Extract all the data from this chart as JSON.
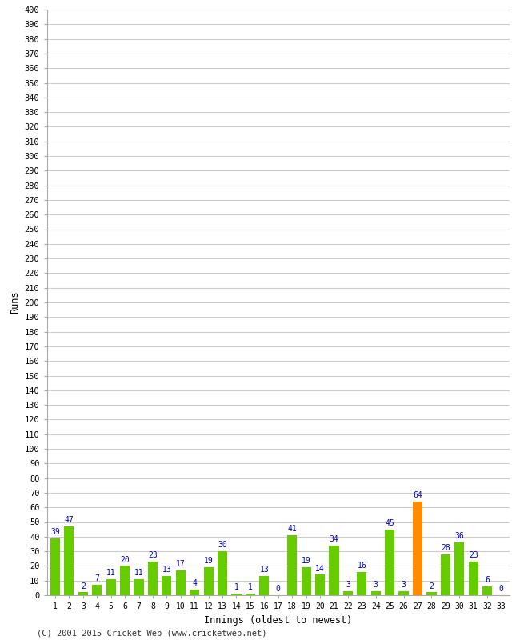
{
  "xlabel": "Innings (oldest to newest)",
  "ylabel": "Runs",
  "categories": [
    1,
    2,
    3,
    4,
    5,
    6,
    7,
    8,
    9,
    10,
    11,
    12,
    13,
    14,
    15,
    16,
    17,
    18,
    19,
    20,
    21,
    22,
    23,
    24,
    25,
    26,
    27,
    28,
    29,
    30,
    31,
    32,
    33
  ],
  "values": [
    39,
    47,
    2,
    7,
    11,
    20,
    11,
    23,
    13,
    17,
    4,
    19,
    30,
    1,
    1,
    13,
    0,
    41,
    19,
    14,
    34,
    3,
    16,
    3,
    45,
    3,
    64,
    2,
    28,
    36,
    23,
    6,
    0
  ],
  "highlight_index": 26,
  "bar_color_normal": "#66cc00",
  "bar_color_highlight": "#ff8c00",
  "label_color": "#0000cc",
  "background_color": "#ffffff",
  "grid_color": "#cccccc",
  "ylim": [
    0,
    400
  ],
  "yticks": [
    0,
    10,
    20,
    30,
    40,
    50,
    60,
    70,
    80,
    90,
    100,
    110,
    120,
    130,
    140,
    150,
    160,
    170,
    180,
    190,
    200,
    210,
    220,
    230,
    240,
    250,
    260,
    270,
    280,
    290,
    300,
    310,
    320,
    330,
    340,
    350,
    360,
    370,
    380,
    390,
    400
  ],
  "figsize": [
    6.5,
    8.0
  ],
  "dpi": 100,
  "footnote": "(C) 2001-2015 Cricket Web (www.cricketweb.net)"
}
